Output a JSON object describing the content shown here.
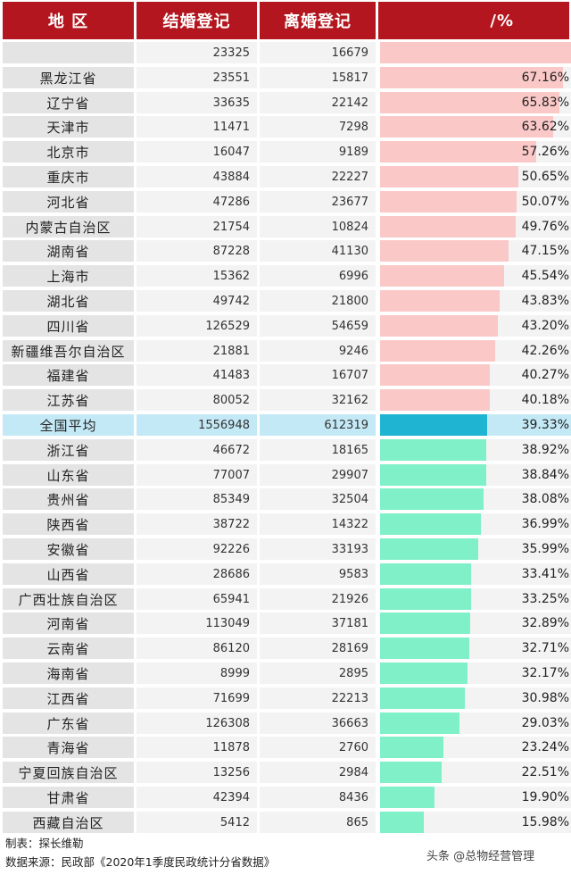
{
  "header": {
    "region": "地  区",
    "marriage": "结婚登记",
    "divorce": "离婚登记",
    "ratio": "/%"
  },
  "colors": {
    "header": "#b3161e",
    "above_average": "#fbc8c8",
    "average": "#1fb5d2",
    "below_average": "#7ff0c8"
  },
  "footer": {
    "maker": "制表：探长维勒",
    "source": "数据来源：民政部《2020年1季度民政统计分省数据》"
  },
  "watermark": "头条 @总物经营管理",
  "chart_data": {
    "type": "table",
    "columns": [
      "地区",
      "结婚登记",
      "离婚登记",
      "/%"
    ],
    "ratio_axis": [
      0,
      70
    ],
    "rows": [
      {
        "region": "",
        "marriage": 23325,
        "divorce": 16679,
        "ratio": null,
        "ratio_label": ""
      },
      {
        "region": "黑龙江省",
        "marriage": 23551,
        "divorce": 15817,
        "ratio": 67.16,
        "ratio_label": "67.16%"
      },
      {
        "region": "辽宁省",
        "marriage": 33635,
        "divorce": 22142,
        "ratio": 65.83,
        "ratio_label": "65.83%"
      },
      {
        "region": "天津市",
        "marriage": 11471,
        "divorce": 7298,
        "ratio": 63.62,
        "ratio_label": "63.62%"
      },
      {
        "region": "北京市",
        "marriage": 16047,
        "divorce": 9189,
        "ratio": 57.26,
        "ratio_label": "57.26%"
      },
      {
        "region": "重庆市",
        "marriage": 43884,
        "divorce": 22227,
        "ratio": 50.65,
        "ratio_label": "50.65%"
      },
      {
        "region": "河北省",
        "marriage": 47286,
        "divorce": 23677,
        "ratio": 50.07,
        "ratio_label": "50.07%"
      },
      {
        "region": "内蒙古自治区",
        "marriage": 21754,
        "divorce": 10824,
        "ratio": 49.76,
        "ratio_label": "49.76%"
      },
      {
        "region": "湖南省",
        "marriage": 87228,
        "divorce": 41130,
        "ratio": 47.15,
        "ratio_label": "47.15%"
      },
      {
        "region": "上海市",
        "marriage": 15362,
        "divorce": 6996,
        "ratio": 45.54,
        "ratio_label": "45.54%"
      },
      {
        "region": "湖北省",
        "marriage": 49742,
        "divorce": 21800,
        "ratio": 43.83,
        "ratio_label": "43.83%"
      },
      {
        "region": "四川省",
        "marriage": 126529,
        "divorce": 54659,
        "ratio": 43.2,
        "ratio_label": "43.20%"
      },
      {
        "region": "新疆维吾尔自治区",
        "marriage": 21881,
        "divorce": 9246,
        "ratio": 42.26,
        "ratio_label": "42.26%"
      },
      {
        "region": "福建省",
        "marriage": 41483,
        "divorce": 16707,
        "ratio": 40.27,
        "ratio_label": "40.27%"
      },
      {
        "region": "江苏省",
        "marriage": 80052,
        "divorce": 32162,
        "ratio": 40.18,
        "ratio_label": "40.18%"
      },
      {
        "region": "全国平均",
        "marriage": 1556948,
        "divorce": 612319,
        "ratio": 39.33,
        "ratio_label": "39.33%",
        "average": true
      },
      {
        "region": "浙江省",
        "marriage": 46672,
        "divorce": 18165,
        "ratio": 38.92,
        "ratio_label": "38.92%"
      },
      {
        "region": "山东省",
        "marriage": 77007,
        "divorce": 29907,
        "ratio": 38.84,
        "ratio_label": "38.84%"
      },
      {
        "region": "贵州省",
        "marriage": 85349,
        "divorce": 32504,
        "ratio": 38.08,
        "ratio_label": "38.08%"
      },
      {
        "region": "陕西省",
        "marriage": 38722,
        "divorce": 14322,
        "ratio": 36.99,
        "ratio_label": "36.99%"
      },
      {
        "region": "安徽省",
        "marriage": 92226,
        "divorce": 33193,
        "ratio": 35.99,
        "ratio_label": "35.99%"
      },
      {
        "region": "山西省",
        "marriage": 28686,
        "divorce": 9583,
        "ratio": 33.41,
        "ratio_label": "33.41%"
      },
      {
        "region": "广西壮族自治区",
        "marriage": 65941,
        "divorce": 21926,
        "ratio": 33.25,
        "ratio_label": "33.25%"
      },
      {
        "region": "河南省",
        "marriage": 113049,
        "divorce": 37181,
        "ratio": 32.89,
        "ratio_label": "32.89%"
      },
      {
        "region": "云南省",
        "marriage": 86120,
        "divorce": 28169,
        "ratio": 32.71,
        "ratio_label": "32.71%"
      },
      {
        "region": "海南省",
        "marriage": 8999,
        "divorce": 2895,
        "ratio": 32.17,
        "ratio_label": "32.17%"
      },
      {
        "region": "江西省",
        "marriage": 71699,
        "divorce": 22213,
        "ratio": 30.98,
        "ratio_label": "30.98%"
      },
      {
        "region": "广东省",
        "marriage": 126308,
        "divorce": 36663,
        "ratio": 29.03,
        "ratio_label": "29.03%"
      },
      {
        "region": "青海省",
        "marriage": 11878,
        "divorce": 2760,
        "ratio": 23.24,
        "ratio_label": "23.24%"
      },
      {
        "region": "宁夏回族自治区",
        "marriage": 13256,
        "divorce": 2984,
        "ratio": 22.51,
        "ratio_label": "22.51%"
      },
      {
        "region": "甘肃省",
        "marriage": 42394,
        "divorce": 8436,
        "ratio": 19.9,
        "ratio_label": "19.90%"
      },
      {
        "region": "西藏自治区",
        "marriage": 5412,
        "divorce": 865,
        "ratio": 15.98,
        "ratio_label": "15.98%"
      }
    ]
  }
}
